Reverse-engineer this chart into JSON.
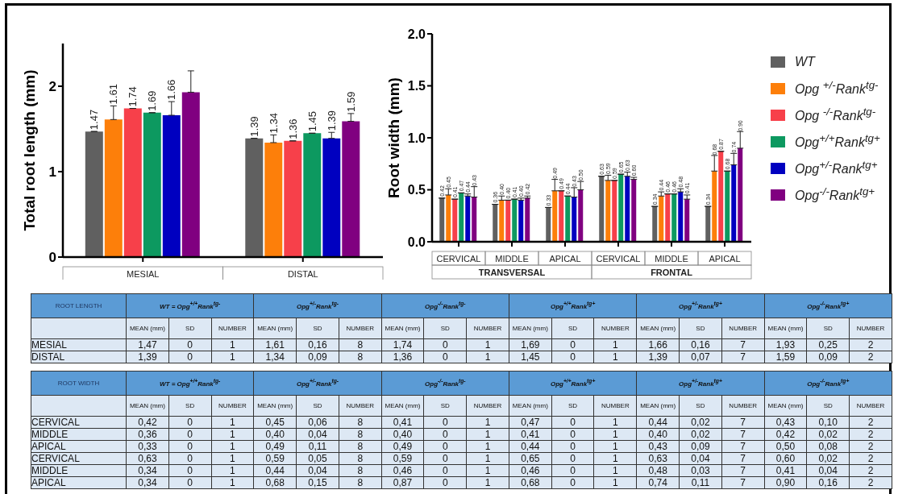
{
  "chart_data": [
    {
      "type": "bar",
      "ylabel": "Total root length (mm)",
      "categories": [
        "MESIAL",
        "DISTAL"
      ],
      "ylim": [
        0,
        2.5
      ],
      "yticks": [
        0,
        1,
        2
      ],
      "series": [
        {
          "color": "#606060",
          "values": [
            1.47,
            1.39
          ],
          "errors": [
            0,
            0
          ],
          "value_labels": [
            "1.47",
            "1.39"
          ]
        },
        {
          "color": "#fd7f0a",
          "values": [
            1.61,
            1.34
          ],
          "errors": [
            0.16,
            0.09
          ],
          "value_labels": [
            "1.61",
            "1.34"
          ]
        },
        {
          "color": "#f7404a",
          "values": [
            1.74,
            1.36
          ],
          "errors": [
            0,
            0
          ],
          "value_labels": [
            "1.74",
            "1.36"
          ]
        },
        {
          "color": "#0d9960",
          "values": [
            1.69,
            1.45
          ],
          "errors": [
            0,
            0
          ],
          "value_labels": [
            "1.69",
            "1.45"
          ]
        },
        {
          "color": "#0000c0",
          "values": [
            1.66,
            1.39
          ],
          "errors": [
            0.16,
            0.07
          ],
          "value_labels": [
            "1.66",
            "1.39"
          ]
        },
        {
          "color": "#800080",
          "values": [
            1.93,
            1.59
          ],
          "errors": [
            0.25,
            0.09
          ],
          "value_labels": [
            null,
            "1.59"
          ]
        }
      ]
    },
    {
      "type": "bar",
      "ylabel": "Root width (mm)",
      "categories": [
        "CERVICAL",
        "MIDDLE",
        "APICAL",
        "CERVICAL",
        "MIDDLE",
        "APICAL"
      ],
      "annotations": [
        "TRANSVERSAL",
        "FRONTAL"
      ],
      "ylim": [
        0,
        2
      ],
      "yticks": [
        {
          "value": 0,
          "label": "0.0"
        },
        {
          "value": 0.5,
          "label": "0.5"
        },
        {
          "value": 1,
          "label": "1.0"
        },
        {
          "value": 1.5,
          "label": "1.5"
        },
        {
          "value": 2,
          "label": "2.0"
        }
      ],
      "legend": "right",
      "series": [
        {
          "name": "WT",
          "color": "#606060",
          "values": [
            0.42,
            0.36,
            0.33,
            0.63,
            0.34,
            0.34
          ],
          "errors": [
            0,
            0,
            0,
            0,
            0,
            0
          ],
          "value_labels": [
            "0.42",
            "0.36",
            "0.33",
            "0.63",
            "0.34",
            "0.34"
          ]
        },
        {
          "name": "Opg $^{+/-}$Rank$^{tg-}$",
          "color": "#fd7f0a",
          "values": [
            0.45,
            0.4,
            0.49,
            0.59,
            0.44,
            0.68
          ],
          "errors": [
            0.06,
            0.04,
            0.11,
            0.05,
            0.04,
            0.15
          ],
          "value_labels": [
            "0.45",
            "0.40",
            "0.49",
            "0.59",
            "0.44",
            "0.68"
          ]
        },
        {
          "name": "Opg $^{-/-}$Rank$^{tg-}$",
          "color": "#f7404a",
          "values": [
            0.41,
            0.4,
            0.49,
            0.59,
            0.46,
            0.87
          ],
          "errors": [
            0,
            0,
            0,
            0,
            0,
            0
          ],
          "value_labels": [
            "0.41",
            "0.40",
            "0.49",
            "0.59",
            "0.46",
            "0.87"
          ]
        },
        {
          "name": "Opg$^{+/+}$Rank$^{tg+}$",
          "color": "#0d9960",
          "values": [
            0.47,
            0.41,
            0.44,
            0.65,
            0.46,
            0.68
          ],
          "errors": [
            0,
            0,
            0,
            0,
            0,
            0
          ],
          "value_labels": [
            "0.47",
            "0.41",
            "0.44",
            "0.65",
            "0.46",
            "0.68"
          ]
        },
        {
          "name": "Opg$^{+/-}$Rank$^{tg+}$",
          "color": "#0000c0",
          "values": [
            0.44,
            0.4,
            0.43,
            0.63,
            0.48,
            0.74
          ],
          "errors": [
            0.02,
            0.02,
            0.09,
            0.04,
            0.03,
            0.11
          ],
          "value_labels": [
            "0.44",
            "0.40",
            "0.43",
            "0.63",
            "0.48",
            "0.74"
          ]
        },
        {
          "name": "Opg$^{-/-}$Rank$^{tg+}$",
          "color": "#800080",
          "values": [
            0.43,
            0.42,
            0.5,
            0.6,
            0.41,
            0.9
          ],
          "errors": [
            0.1,
            0.02,
            0.08,
            0.02,
            0.04,
            0.16
          ],
          "value_labels": [
            "0.43",
            "0.42",
            "0.50",
            "0.60",
            "0.41",
            "0.90"
          ]
        }
      ]
    },
    {
      "type": "other",
      "title": "ROOT LENGTH",
      "annotations": [
        "WT = Opg$^{+/+}$Rank$^{tg-}$",
        "Opg$^{+/-}$Rank$^{tg-}$",
        "Opg$^{-/-}$Rank$^{tg-}$",
        "Opg$^{+/+}$Rank$^{tg+}$",
        "Opg$^{+/-}$Rank$^{tg+}$",
        "Opg$^{-/-}$Rank$^{tg+}$"
      ],
      "categories": [
        "MEAN (mm)",
        "SD",
        "NUMBER",
        "MEAN (mm)",
        "SD",
        "NUMBER",
        "MEAN (mm)",
        "SD",
        "NUMBER",
        "MEAN (mm)",
        "SD",
        "NUMBER",
        "MEAN (mm)",
        "SD",
        "NUMBER",
        "MEAN (mm)",
        "SD",
        "NUMBER"
      ],
      "y_categories": [
        "MESIAL",
        "DISTAL"
      ],
      "cell_labels": [
        [
          "1,47",
          "0",
          "1",
          "1,61",
          "0,16",
          "8",
          "1,74",
          "0",
          "1",
          "1,69",
          "0",
          "1",
          "1,66",
          "0,16",
          "7",
          "1,93",
          "0,25",
          "2"
        ],
        [
          "1,39",
          "0",
          "1",
          "1,34",
          "0,09",
          "8",
          "1,36",
          "0",
          "1",
          "1,45",
          "0",
          "1",
          "1,39",
          "0,07",
          "7",
          "1,59",
          "0,09",
          "2"
        ]
      ]
    },
    {
      "type": "other",
      "title": "ROOT  WIDTH",
      "annotations": [
        "WT = Opg$^{+/+}$Rank$^{tg-}$",
        "Opg$^{+/-}$Rank$^{tg-}$",
        "Opg$^{-/-}$Rank$^{tg-}$",
        "Opg$^{+/+}$Rank$^{tg+}$",
        "Opg$^{+/-}$Rank$^{tg+}$",
        "Opg$^{-/-}$Rank$^{tg+}$"
      ],
      "categories": [
        "MEAN (mm)",
        "SD",
        "NUMBER",
        "MEAN (mm)",
        "SD",
        "NUMBER",
        "MEAN (mm)",
        "SD",
        "NUMBER",
        "MEAN (mm)",
        "SD",
        "NUMBER",
        "MEAN (mm)",
        "SD",
        "NUMBER",
        "MEAN (mm)",
        "SD",
        "NUMBER"
      ],
      "y_categories": [
        "CERVICAL",
        "MIDDLE",
        "APICAL",
        "CERVICAL",
        "MIDDLE",
        "APICAL"
      ],
      "cell_labels": [
        [
          "0,42",
          "0",
          "1",
          "0,45",
          "0,06",
          "8",
          "0,41",
          "0",
          "1",
          "0,47",
          "0",
          "1",
          "0,44",
          "0,02",
          "7",
          "0,43",
          "0,10",
          "2"
        ],
        [
          "0,36",
          "0",
          "1",
          "0,40",
          "0,04",
          "8",
          "0,40",
          "0",
          "1",
          "0,41",
          "0",
          "1",
          "0,40",
          "0,02",
          "7",
          "0,42",
          "0,02",
          "2"
        ],
        [
          "0,33",
          "0",
          "1",
          "0,49",
          "0,11",
          "8",
          "0,49",
          "0",
          "1",
          "0,44",
          "0",
          "1",
          "0,43",
          "0,09",
          "7",
          "0,50",
          "0,08",
          "2"
        ],
        [
          "0,63",
          "0",
          "1",
          "0,59",
          "0,05",
          "8",
          "0,59",
          "0",
          "1",
          "0,65",
          "0",
          "1",
          "0,63",
          "0,04",
          "7",
          "0,60",
          "0,02",
          "2"
        ],
        [
          "0,34",
          "0",
          "1",
          "0,44",
          "0,04",
          "8",
          "0,46",
          "0",
          "1",
          "0,46",
          "0",
          "1",
          "0,48",
          "0,03",
          "7",
          "0,41",
          "0,04",
          "2"
        ],
        [
          "0,34",
          "0",
          "1",
          "0,68",
          "0,15",
          "8",
          "0,87",
          "0",
          "1",
          "0,68",
          "0",
          "1",
          "0,74",
          "0,11",
          "7",
          "0,90",
          "0,16",
          "2"
        ]
      ]
    }
  ]
}
